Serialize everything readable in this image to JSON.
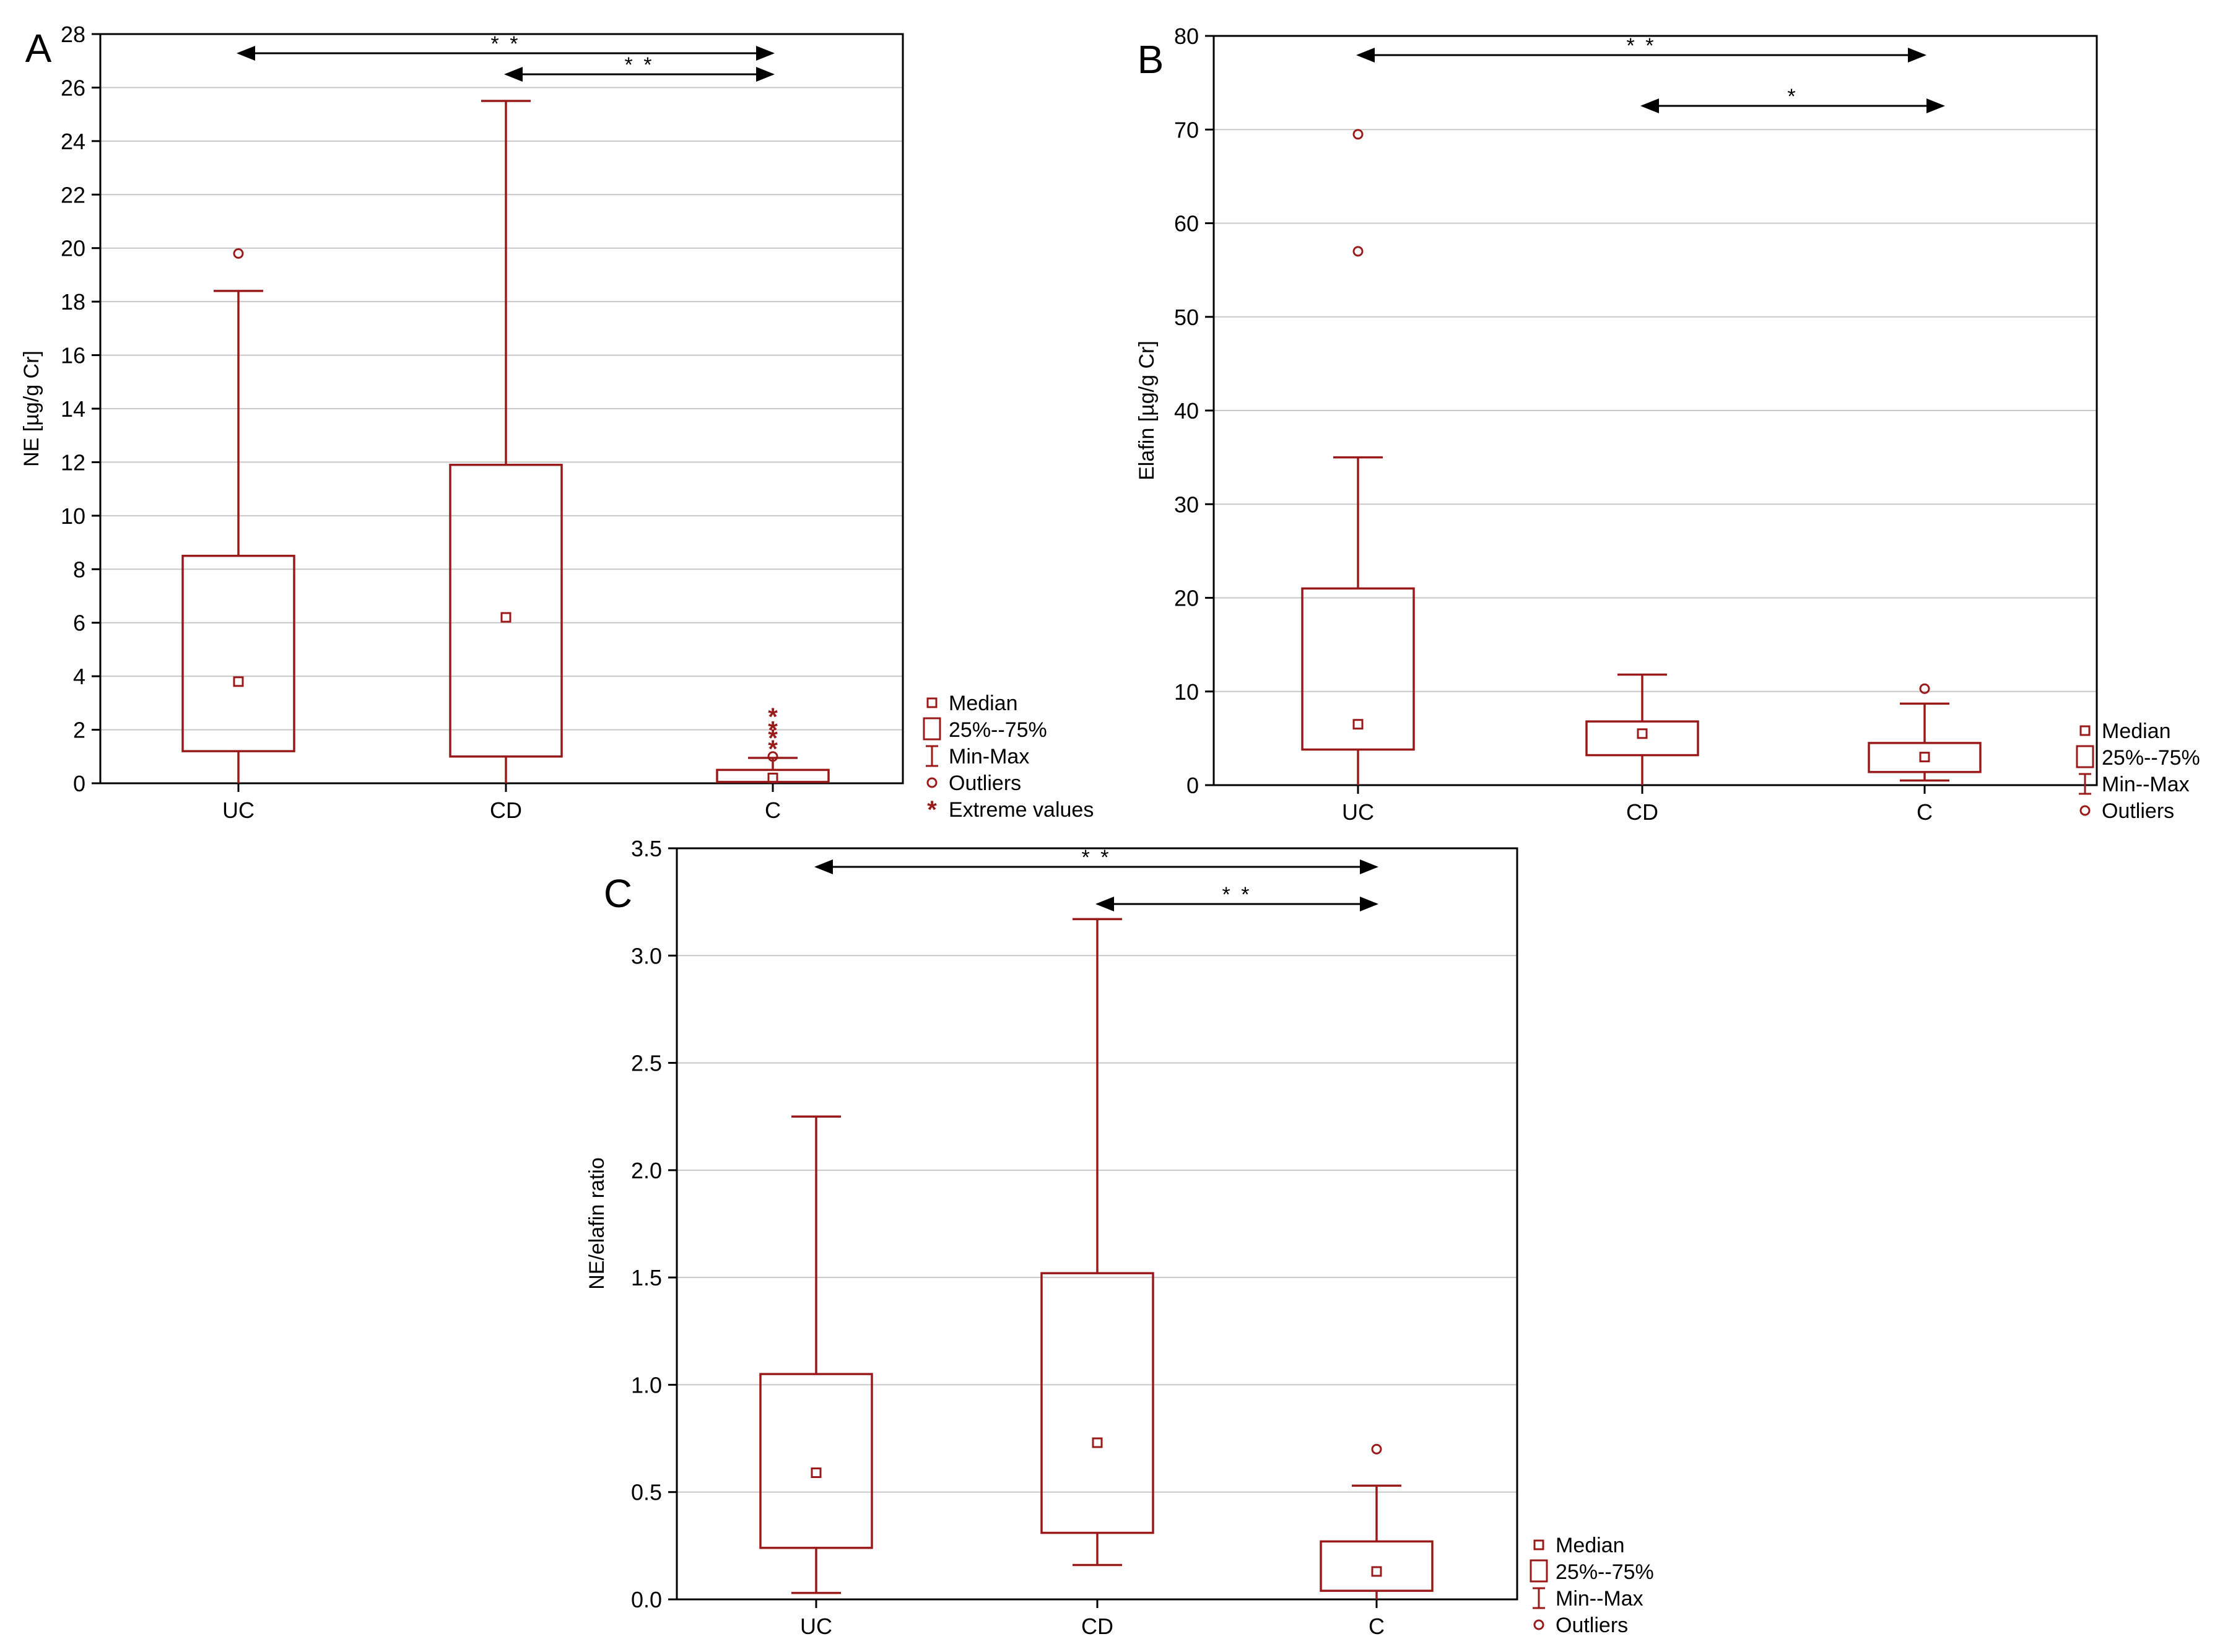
{
  "colors": {
    "box": "#9a1a1a",
    "axis": "#000000",
    "grid": "#c8c8c8",
    "arrow": "#000000",
    "background": "#ffffff"
  },
  "legend_items": {
    "median": "Median",
    "iqr": "25%--75%",
    "minmax_a": "Min-Max",
    "minmax_bc": "Min--Max",
    "outliers": "Outliers",
    "extremes": "Extreme values"
  },
  "chart_data": [
    {
      "panel_label": "A",
      "type": "box",
      "ylabel": "NE [µg/g Cr]",
      "ylim": [
        0,
        28
      ],
      "yticks": [
        0,
        2,
        4,
        6,
        8,
        10,
        12,
        14,
        16,
        18,
        20,
        22,
        24,
        26,
        28
      ],
      "ytick_labels": [
        "0",
        "2",
        "4",
        "6",
        "8",
        "10",
        "12",
        "14",
        "16",
        "18",
        "20",
        "22",
        "24",
        "26",
        "28"
      ],
      "grid": true,
      "legend_position": "right",
      "categories": [
        "UC",
        "CD",
        "C"
      ],
      "boxes": [
        {
          "category": "UC",
          "min": 0,
          "q1": 1.2,
          "median": 3.8,
          "q3": 8.5,
          "max": 18.4,
          "outliers": [
            19.8
          ],
          "extremes": []
        },
        {
          "category": "CD",
          "min": 0,
          "q1": 1.0,
          "median": 6.2,
          "q3": 11.9,
          "max": 25.5,
          "outliers": [],
          "extremes": []
        },
        {
          "category": "C",
          "min": 0,
          "q1": 0.05,
          "median": 0.2,
          "q3": 0.5,
          "max": 0.95,
          "outliers": [
            1.0
          ],
          "extremes": [
            1.3,
            1.7,
            2.0,
            2.5
          ]
        }
      ],
      "significance": [
        {
          "from": "UC",
          "to": "C",
          "label": "* *"
        },
        {
          "from": "CD",
          "to": "C",
          "label": "* *"
        }
      ],
      "legend": [
        "median",
        "iqr",
        "minmax_a",
        "outliers",
        "extremes"
      ]
    },
    {
      "panel_label": "B",
      "type": "box",
      "ylabel": "Elafin [µg/g Cr]",
      "ylim": [
        0,
        80
      ],
      "yticks": [
        0,
        10,
        20,
        30,
        40,
        50,
        60,
        70,
        80
      ],
      "ytick_labels": [
        "0",
        "10",
        "20",
        "30",
        "40",
        "50",
        "60",
        "70",
        "80"
      ],
      "grid": true,
      "legend_position": "right",
      "categories": [
        "UC",
        "CD",
        "C"
      ],
      "boxes": [
        {
          "category": "UC",
          "min": 0,
          "q1": 3.8,
          "median": 6.5,
          "q3": 21.0,
          "max": 35.0,
          "outliers": [
            57.0,
            69.5
          ],
          "extremes": []
        },
        {
          "category": "CD",
          "min": 0,
          "q1": 3.2,
          "median": 5.5,
          "q3": 6.8,
          "max": 11.8,
          "outliers": [],
          "extremes": []
        },
        {
          "category": "C",
          "min": 0.5,
          "q1": 1.4,
          "median": 3.0,
          "q3": 4.5,
          "max": 8.7,
          "outliers": [
            10.3
          ],
          "extremes": []
        }
      ],
      "significance": [
        {
          "from": "UC",
          "to": "C",
          "label": "* *"
        },
        {
          "from": "CD",
          "to": "C",
          "label": "*"
        }
      ],
      "legend": [
        "median",
        "iqr",
        "minmax_bc",
        "outliers"
      ]
    },
    {
      "panel_label": "C",
      "type": "box",
      "ylabel": "NE/elafin ratio",
      "ylim": [
        0,
        3.5
      ],
      "yticks": [
        0,
        0.5,
        1.0,
        1.5,
        2.0,
        2.5,
        3.0,
        3.5
      ],
      "ytick_labels": [
        "0.0",
        "0.5",
        "1.0",
        "1.5",
        "2.0",
        "2.5",
        "3.0",
        "3.5"
      ],
      "grid": true,
      "legend_position": "right",
      "categories": [
        "UC",
        "CD",
        "C"
      ],
      "boxes": [
        {
          "category": "UC",
          "min": 0.03,
          "q1": 0.24,
          "median": 0.59,
          "q3": 1.05,
          "max": 2.25,
          "outliers": [],
          "extremes": []
        },
        {
          "category": "CD",
          "min": 0.16,
          "q1": 0.31,
          "median": 0.73,
          "q3": 1.52,
          "max": 3.17,
          "outliers": [],
          "extremes": []
        },
        {
          "category": "C",
          "min": 0,
          "q1": 0.04,
          "median": 0.13,
          "q3": 0.27,
          "max": 0.53,
          "outliers": [
            0.7
          ],
          "extremes": []
        }
      ],
      "significance": [
        {
          "from": "UC",
          "to": "C",
          "label": "* *"
        },
        {
          "from": "CD",
          "to": "C",
          "label": "* *"
        }
      ],
      "legend": [
        "median",
        "iqr",
        "minmax_bc",
        "outliers"
      ]
    }
  ]
}
